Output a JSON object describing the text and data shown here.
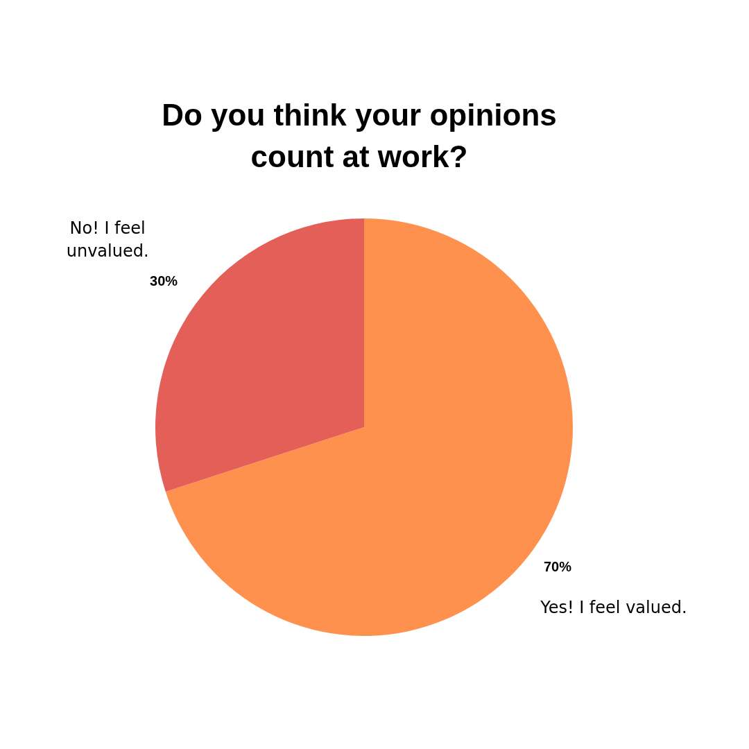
{
  "chart_data": {
    "type": "pie",
    "title": "Do you think your opinions count at work?",
    "categories": [
      "Yes! I feel valued.",
      "No! I feel unvalued."
    ],
    "values": [
      70,
      30
    ],
    "colors": [
      "#fe914d",
      "#e35f58"
    ],
    "value_labels": [
      "70%",
      "30%"
    ]
  }
}
